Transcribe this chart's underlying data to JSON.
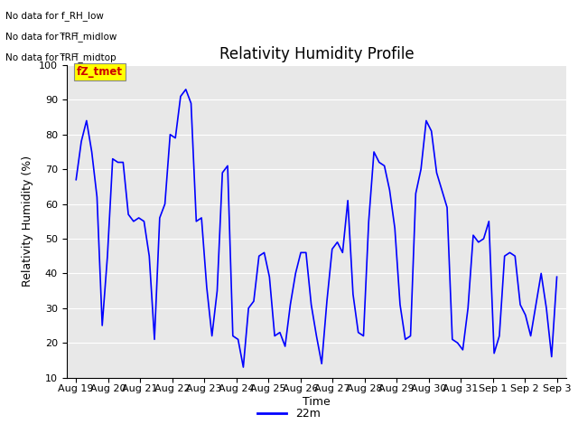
{
  "title": "Relativity Humidity Profile",
  "ylabel": "Relativity Humidity (%)",
  "xlabel": "Time",
  "ylim": [
    10,
    100
  ],
  "yticks": [
    10,
    20,
    30,
    40,
    50,
    60,
    70,
    80,
    90,
    100
  ],
  "line_color": "#0000ff",
  "line_width": 1.2,
  "legend_label": "22m",
  "plot_bg_color": "#e8e8e8",
  "fig_bg_color": "#ffffff",
  "annotations": [
    "No data for f_RH_low",
    "No data for f̅RH̅_midlow",
    "No data for f̅RH̅_midtop"
  ],
  "annotations_raw": [
    "No data for f_RH_low",
    "No data for f RH midlow",
    "No data for f RH midtop"
  ],
  "legend_box_color": "#ffff00",
  "legend_text_color": "#cc0000",
  "legend_box_label": "fZ_tmet",
  "x_labels": [
    "Aug 19",
    "Aug 20",
    "Aug 21",
    "Aug 22",
    "Aug 23",
    "Aug 24",
    "Aug 25",
    "Aug 26",
    "Aug 27",
    "Aug 28",
    "Aug 29",
    "Aug 30",
    "Aug 31",
    "Sep 1",
    "Sep 2",
    "Sep 3"
  ],
  "y_values": [
    67,
    78,
    84,
    75,
    62,
    25,
    45,
    73,
    72,
    72,
    57,
    55,
    56,
    55,
    45,
    21,
    56,
    60,
    80,
    79,
    91,
    93,
    89,
    55,
    56,
    36,
    22,
    35,
    69,
    71,
    22,
    21,
    13,
    30,
    32,
    45,
    46,
    39,
    22,
    23,
    19,
    31,
    40,
    46,
    46,
    31,
    22,
    14,
    32,
    47,
    49,
    46,
    61,
    34,
    23,
    22,
    55,
    75,
    72,
    71,
    64,
    53,
    31,
    21,
    22,
    63,
    70,
    84,
    81,
    69,
    64,
    59,
    21,
    20,
    18,
    30,
    51,
    49,
    50,
    55,
    17,
    22,
    45,
    46,
    45,
    31,
    28,
    22,
    31,
    40,
    30,
    16,
    39
  ]
}
